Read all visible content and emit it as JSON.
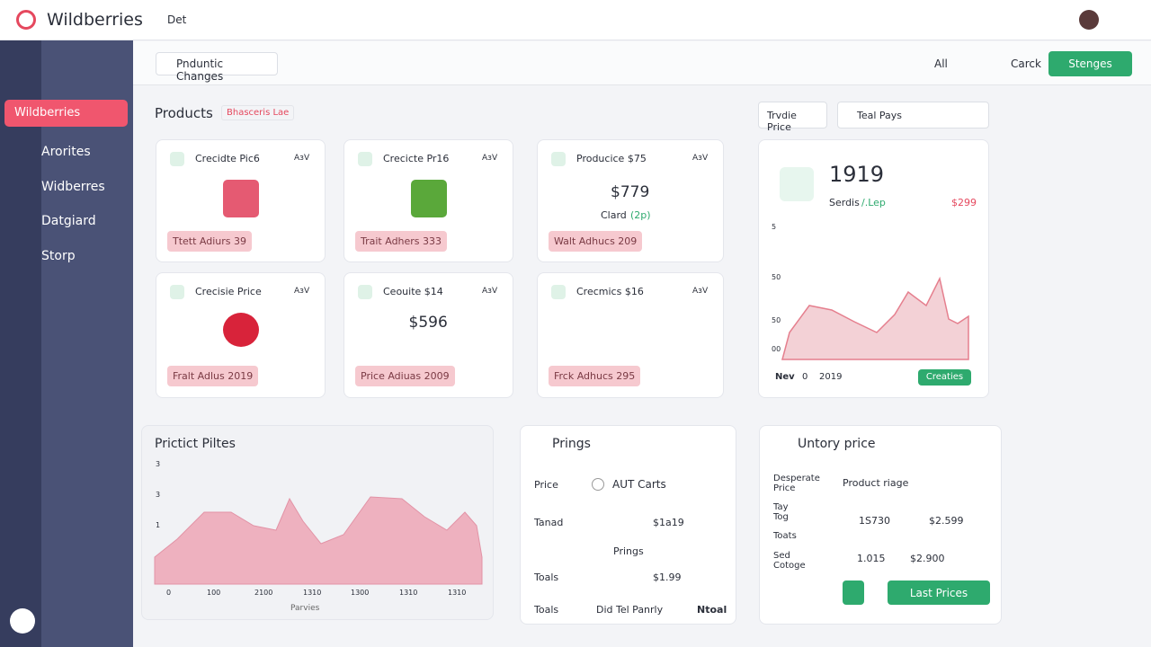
{
  "header": {
    "brand": "Wildberries",
    "nav": "Det"
  },
  "toolbar": {
    "tag": "Pnduntic Changes",
    "lock": "All",
    "search": "Carck",
    "button": "Stenges"
  },
  "sidebar": {
    "active": "Wildberries",
    "items": [
      "Arorites",
      "Widberres",
      "Datgiard",
      "Storp"
    ]
  },
  "products": {
    "title": "Products",
    "badge": "Bhasceris Lae",
    "cards": [
      {
        "title": "Crecidte Pic6",
        "tag": "AɜV",
        "footer": "Ttett Adiurs 39"
      },
      {
        "title": "Crecicte Pr16",
        "tag": "AɜV",
        "footer": "Trait Adhers 333"
      },
      {
        "title": "Producice $75",
        "tag": "AɜV",
        "price": "$779",
        "sub": "Clard",
        "sub_note": "(2p)",
        "footer": "Walt Adhucs 209"
      },
      {
        "title": "Crecisie Price",
        "tag": "AɜV",
        "footer": "Fralt Adlus 2019"
      },
      {
        "title": "Ceouite $14",
        "tag": "AɜV",
        "price": "$596",
        "footer": "Price Adiuas 2009"
      },
      {
        "title": "Crecmics $16",
        "tag": "AɜV",
        "footer": "Frck Adhucs 295"
      }
    ]
  },
  "stats": {
    "filter1": "Trvdie Price",
    "filter2": "Teal Pays",
    "value": "1919",
    "label": "Serdis",
    "label_note": "/.Lep",
    "amount": "$299",
    "y_labels": [
      "5",
      "50",
      "50",
      "00"
    ],
    "x_labels": [
      "Nev",
      "0",
      "2019"
    ],
    "button": "Creaties"
  },
  "trend": {
    "title": "Prictict Piltes",
    "y_labels": [
      "3",
      "3",
      "1"
    ],
    "x_labels": [
      "0",
      "100",
      "2100",
      "1310",
      "1300",
      "1310",
      "1310"
    ],
    "x_title": "Parvies"
  },
  "pricing": {
    "title": "Prings",
    "rows": [
      {
        "label": "Price",
        "option": "AUT Carts"
      },
      {
        "label": "Tanad",
        "amount": "$1a19"
      },
      {
        "label": "Prings"
      },
      {
        "label": "Toals",
        "amount": "$1.99"
      }
    ],
    "footer": [
      "Toals",
      "Did Tel Panrly",
      "Ntoal"
    ]
  },
  "inventory": {
    "title": "Untory price",
    "rows": [
      {
        "label": "Desperate Price",
        "value": "Product riage"
      },
      {
        "label": "Tay Tog",
        "a": "1S730",
        "b": "$2.599"
      },
      {
        "label": "Toats"
      },
      {
        "label": "Sed Cotoge",
        "a": "1.015",
        "b": "$2.900"
      }
    ],
    "button": "Last Prices"
  }
}
